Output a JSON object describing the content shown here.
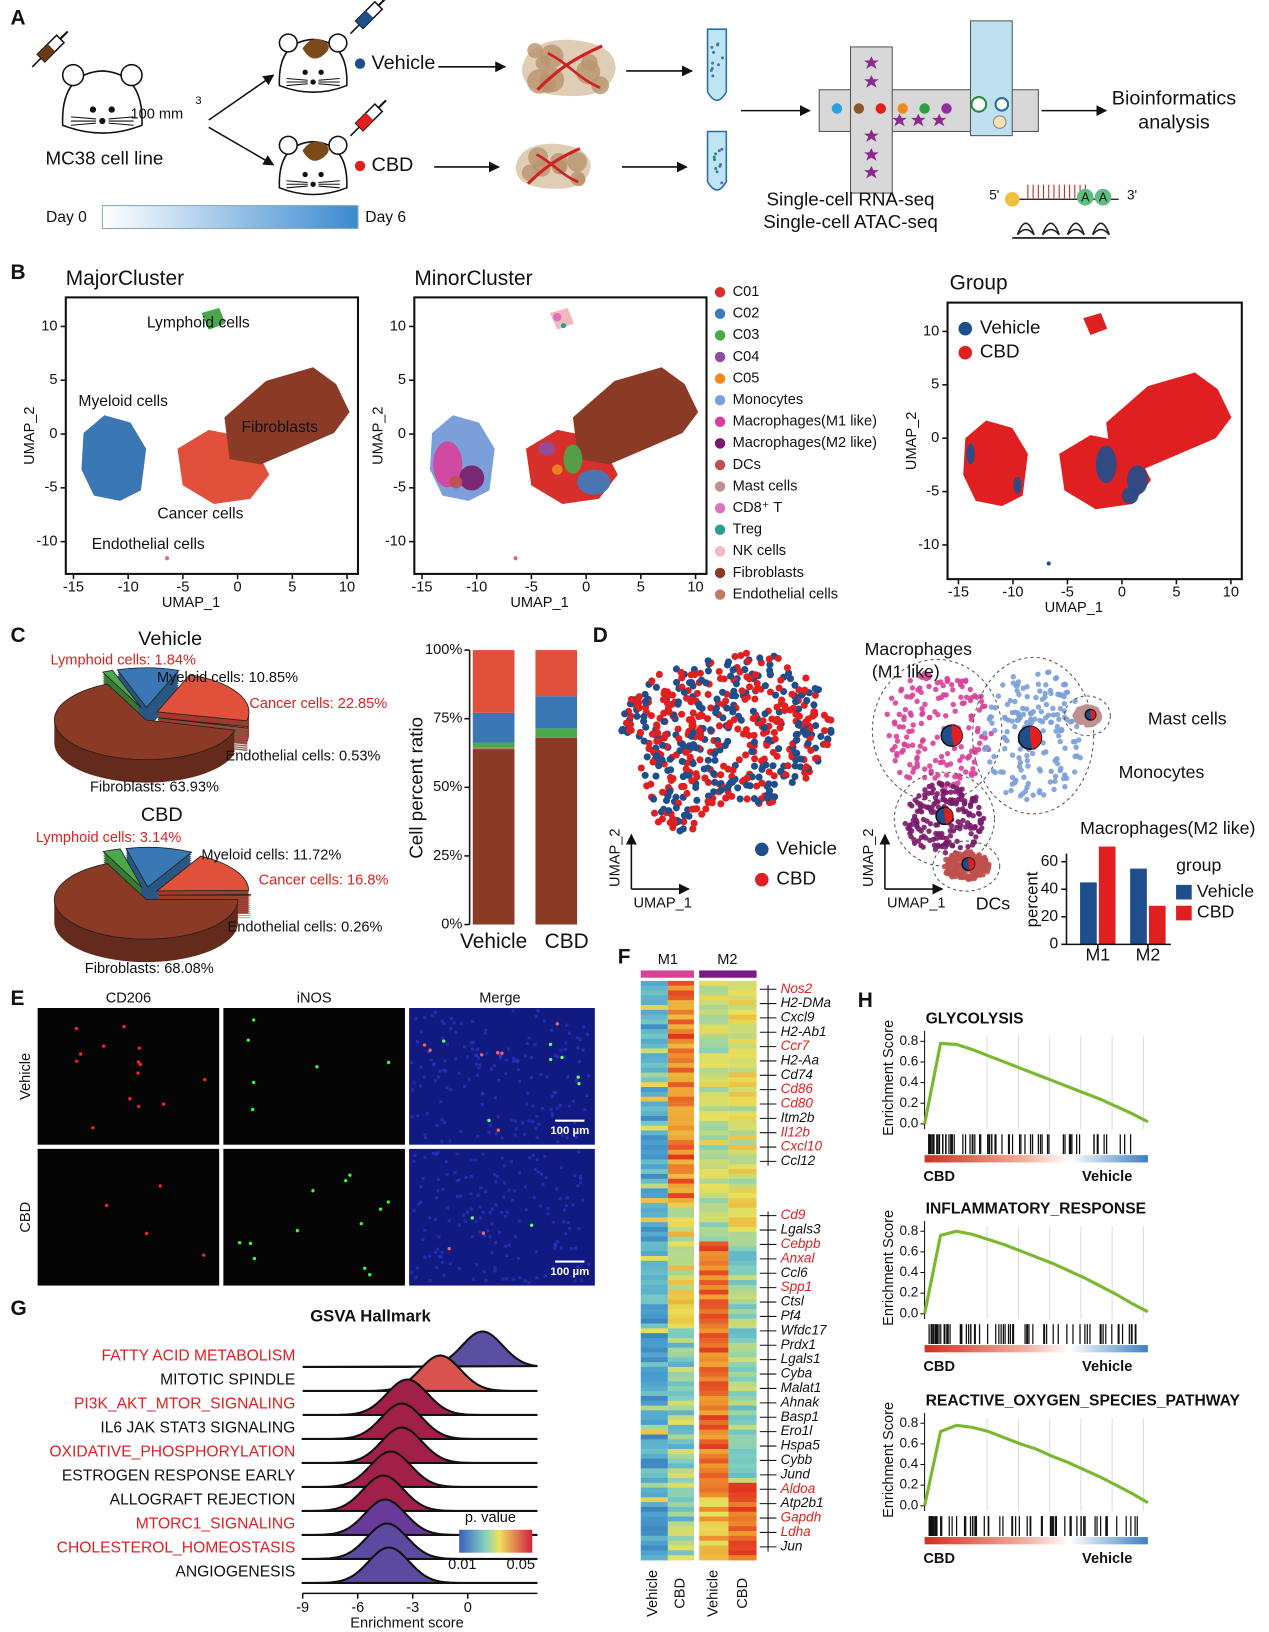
{
  "figure": {
    "panel_labels": [
      "A",
      "B",
      "C",
      "D",
      "E",
      "F",
      "G",
      "H"
    ],
    "schematic": {
      "cell_line": "MC38 cell line",
      "dose": "100 mm",
      "dose_exponent": "3",
      "groups": [
        {
          "name": "Vehicle",
          "color": "#1f4e8c"
        },
        {
          "name": "CBD",
          "color": "#e02020"
        }
      ],
      "timeline": [
        "Day 0",
        "Day 6"
      ],
      "methods": [
        "Single-cell RNA-seq",
        "Single-cell ATAC-seq"
      ],
      "output": [
        "Bioinformatics",
        "analysis"
      ],
      "read_ends": [
        "5'",
        "3'"
      ],
      "bases": [
        "A",
        "A"
      ]
    },
    "microscopy": {
      "columns": [
        "CD206",
        "iNOS",
        "Merge"
      ],
      "rows": [
        "Vehicle",
        "CBD"
      ],
      "scale_bar": "100 µm"
    },
    "heatmap": {
      "clusters": [
        "M1",
        "M2"
      ],
      "samples": [
        "Vehicle",
        "CBD",
        "Vehicle",
        "CBD"
      ],
      "genes": [
        "Nos2",
        "H2-DMa",
        "Cxcl9",
        "H2-Ab1",
        "Ccr7",
        "H2-Aa",
        "Cd74",
        "Cd86",
        "Cd80",
        "Itm2b",
        "Il12b",
        "Cxcl10",
        "Ccl12",
        "Cd9",
        "Lgals3",
        "Cebpb",
        "Anxal",
        "Ccl6",
        "Spp1",
        "Ctsl",
        "Pf4",
        "Wfdc17",
        "Prdx1",
        "Lgals1",
        "Cyba",
        "Malat1",
        "Ahnak",
        "Basp1",
        "Ero1l",
        "Hspa5",
        "Cybb",
        "Jund",
        "Aldoa",
        "Atp2b1",
        "Gapdh",
        "Ldha",
        "Jun"
      ],
      "gene_colors": [
        "#e02020",
        "#111",
        "#111",
        "#111",
        "#e02020",
        "#111",
        "#111",
        "#e02020",
        "#e02020",
        "#111",
        "#e02020",
        "#e02020",
        "#111",
        "#e02020",
        "#111",
        "#e02020",
        "#e02020",
        "#111",
        "#e02020",
        "#111",
        "#111",
        "#111",
        "#111",
        "#111",
        "#111",
        "#111",
        "#111",
        "#111",
        "#111",
        "#111",
        "#111",
        "#111",
        "#e02020",
        "#111",
        "#e02020",
        "#e02020",
        "#111"
      ]
    }
  },
  "chart_data": [
    {
      "type": "scatter",
      "title": "MajorCluster",
      "x_label": "UMAP_1",
      "y_label": "UMAP_2",
      "xlim": [
        -15.7,
        11
      ],
      "ylim": [
        -13,
        12.7
      ],
      "xticks": [
        -15,
        -10,
        -5,
        0,
        5,
        10
      ],
      "yticks": [
        -10,
        -5,
        0,
        5,
        10
      ],
      "annotations": [
        "Lymphoid cells",
        "Myeloid cells",
        "Fibroblasts",
        "Cancer cells",
        "Endothelial cells"
      ]
    },
    {
      "type": "scatter",
      "title": "MinorCluster",
      "x_label": "UMAP_1",
      "y_label": "UMAP_2",
      "xlim": [
        -15.7,
        11
      ],
      "ylim": [
        -13,
        12.7
      ],
      "xticks": [
        -15,
        -10,
        -5,
        0,
        5,
        10
      ],
      "yticks": [
        -10,
        -5,
        0,
        5,
        10
      ],
      "legend": [
        {
          "name": "C01",
          "color": "#d7302a"
        },
        {
          "name": "C02",
          "color": "#3b7cc1"
        },
        {
          "name": "C03",
          "color": "#4aaa4a"
        },
        {
          "name": "C04",
          "color": "#8e4ea0"
        },
        {
          "name": "C05",
          "color": "#f08a1c"
        },
        {
          "name": "Monocytes",
          "color": "#7b9fd8"
        },
        {
          "name": "Macrophages(M1 like)",
          "color": "#d8409a"
        },
        {
          "name": "Macrophages(M2 like)",
          "color": "#7a1a6a"
        },
        {
          "name": "DCs",
          "color": "#c0504d"
        },
        {
          "name": "Mast cells",
          "color": "#c09090"
        },
        {
          "name": "CD8⁺ T",
          "color": "#e070c0"
        },
        {
          "name": "Treg",
          "color": "#2aa090"
        },
        {
          "name": "NK cells",
          "color": "#f4b8c0"
        },
        {
          "name": "Fibroblasts",
          "color": "#8b3a26"
        },
        {
          "name": "Endothelial cells",
          "color": "#c07a6a"
        }
      ]
    },
    {
      "type": "scatter",
      "title": "Group",
      "x_label": "UMAP_1",
      "y_label": "UMAP_2",
      "xlim": [
        -16,
        11
      ],
      "ylim": [
        -13.2,
        12.7
      ],
      "xticks": [
        -15,
        -10,
        -5,
        0,
        5,
        10
      ],
      "yticks": [
        -10,
        -5,
        0,
        5,
        10
      ],
      "legend": [
        {
          "name": "Vehicle",
          "color": "#1f4e8c"
        },
        {
          "name": "CBD",
          "color": "#e02020"
        }
      ]
    },
    {
      "type": "pie",
      "title": "Vehicle",
      "values": [
        1.84,
        10.85,
        22.85,
        0.53,
        63.93
      ],
      "value_labels": [
        "Lymphoid cells: 1.84%",
        "Myeloid cells: 10.85%",
        "Cancer cells: 22.85%",
        "Endothelial cells: 0.53%",
        "Fibroblasts: 63.93%"
      ],
      "colors": [
        "#4ba84a",
        "#3a78b5",
        "#e0503a",
        "#c07a6a",
        "#8b3a26"
      ],
      "label_colors": [
        "#e02020",
        "#111",
        "#e02020",
        "#111",
        "#111"
      ]
    },
    {
      "type": "pie",
      "title": "CBD",
      "values": [
        3.14,
        11.72,
        16.8,
        0.26,
        68.08
      ],
      "value_labels": [
        "Lymphoid cells: 3.14%",
        "Myeloid cells: 11.72%",
        "Cancer cells: 16.8%",
        "Endothelial cells: 0.26%",
        "Fibroblasts: 68.08%"
      ],
      "colors": [
        "#4ba84a",
        "#3a78b5",
        "#e0503a",
        "#c07a6a",
        "#8b3a26"
      ],
      "label_colors": [
        "#e02020",
        "#111",
        "#e02020",
        "#111",
        "#111"
      ]
    },
    {
      "type": "stacked_bar",
      "y_label": "Cell percent ratio",
      "categories": [
        "Vehicle",
        "CBD"
      ],
      "ylim": [
        0,
        100
      ],
      "yticks": [
        {
          "value": 0,
          "label": "0%"
        },
        {
          "value": 25,
          "label": "25%"
        },
        {
          "value": 50,
          "label": "50%"
        },
        {
          "value": 75,
          "label": "75%"
        },
        {
          "value": 100,
          "label": "100%"
        }
      ],
      "series": [
        {
          "color": "#8b3a26",
          "values": [
            63.93,
            68.08
          ]
        },
        {
          "color": "#c07a6a",
          "values": [
            0.53,
            0.26
          ]
        },
        {
          "color": "#4ba84a",
          "values": [
            1.84,
            3.14
          ]
        },
        {
          "color": "#3a78b5",
          "values": [
            10.85,
            11.72
          ]
        },
        {
          "color": "#e0503a",
          "values": [
            22.85,
            16.8
          ]
        }
      ]
    },
    {
      "type": "scatter",
      "x_label": "UMAP_1",
      "y_label": "UMAP_2",
      "legend": [
        {
          "name": "Vehicle",
          "color": "#1f4e8c"
        },
        {
          "name": "CBD",
          "color": "#e02020"
        }
      ]
    },
    {
      "type": "scatter",
      "x_label": "UMAP_1",
      "y_label": "UMAP_2",
      "annotations": [
        "Macrophages",
        "(M1 like)",
        "Mast cells",
        "Monocytes",
        "Macrophages(M2 like)",
        "DCs"
      ]
    },
    {
      "type": "bar",
      "y_label": "percent",
      "legend_title": "group",
      "categories": [
        "M1",
        "M2"
      ],
      "ylim": [
        0,
        75
      ],
      "yticks": [
        0,
        20,
        40,
        60
      ],
      "series": [
        {
          "name": "Vehicle",
          "color": "#1f4e8c",
          "values": [
            45,
            55
          ]
        },
        {
          "name": "CBD",
          "color": "#e02020",
          "values": [
            71,
            28
          ]
        }
      ]
    },
    {
      "type": "ridgeline",
      "title": "GSVA Hallmark",
      "x_label": "Enrichment score",
      "categories": [
        "FATTY ACID METABOLISM",
        "MITOTIC SPINDLE",
        "PI3K_AKT_MTOR_SIGNALING",
        "IL6 JAK STAT3 SIGNALING",
        "OXIDATIVE_PHOSPHORYLATION",
        "ESTROGEN RESPONSE EARLY",
        "ALLOGRAFT REJECTION",
        "MTORC1_SIGNALING",
        "CHOLESTEROL_HOMEOSTASIS",
        "ANGIOGENESIS"
      ],
      "label_colors": [
        "#e02020",
        "#111",
        "#e02020",
        "#111",
        "#e02020",
        "#111",
        "#111",
        "#e02020",
        "#e02020",
        "#111"
      ],
      "values": [
        0.8,
        -1.5,
        -3.3,
        -3.6,
        -3.6,
        -4.2,
        -4.6,
        -4.5,
        -4.4,
        -4.3
      ],
      "colors": [
        "#5a4fa0",
        "#d9534f",
        "#a0204a",
        "#a0204a",
        "#a0204a",
        "#a0204a",
        "#a0204a",
        "#6a3a9a",
        "#5b4aa0",
        "#5b4aa0"
      ],
      "xlim": [
        -9,
        3.8
      ],
      "xticks": [
        -9,
        -6,
        -3,
        0
      ],
      "legend_title": "p. value",
      "legend_ticks": [
        0.01,
        0.05
      ]
    },
    {
      "type": "line",
      "title": "GLYCOLYSIS",
      "y_label": "Enrichment Score",
      "x_labels": [
        "CBD",
        "Vehicle"
      ],
      "color": "#7ab82e",
      "ylim": [
        -0.05,
        0.85
      ],
      "yticks": [
        {
          "value": 0,
          "label": "0.0"
        },
        0.2,
        0.4,
        0.6,
        0.8
      ],
      "values": [
        0,
        0.78,
        0.77,
        0.72,
        0.66,
        0.6,
        0.54,
        0.48,
        0.42,
        0.36,
        0.3,
        0.24,
        0.17,
        0.1,
        0.02
      ]
    },
    {
      "type": "line",
      "title": "INFLAMMATORY_RESPONSE",
      "y_label": "Enrichment Score",
      "x_labels": [
        "CBD",
        "Vehicle"
      ],
      "color": "#7ab82e",
      "ylim": [
        -0.05,
        0.85
      ],
      "yticks": [
        {
          "value": 0,
          "label": "0.0"
        },
        0.2,
        0.4,
        0.6,
        0.8
      ],
      "values": [
        0,
        0.76,
        0.8,
        0.77,
        0.72,
        0.67,
        0.61,
        0.55,
        0.49,
        0.42,
        0.35,
        0.27,
        0.19,
        0.1,
        0.02
      ]
    },
    {
      "type": "line",
      "title": "REACTIVE_OXYGEN_SPECIES_PATHWAY",
      "y_label": "Enrichment Score",
      "x_labels": [
        "CBD",
        "Vehicle"
      ],
      "color": "#7ab82e",
      "ylim": [
        -0.05,
        0.85
      ],
      "yticks": [
        {
          "value": 0,
          "label": "0.0"
        },
        0.2,
        0.4,
        0.6,
        0.8
      ],
      "values": [
        0,
        0.72,
        0.78,
        0.76,
        0.72,
        0.66,
        0.6,
        0.55,
        0.48,
        0.42,
        0.35,
        0.28,
        0.2,
        0.12,
        0.03
      ]
    }
  ]
}
